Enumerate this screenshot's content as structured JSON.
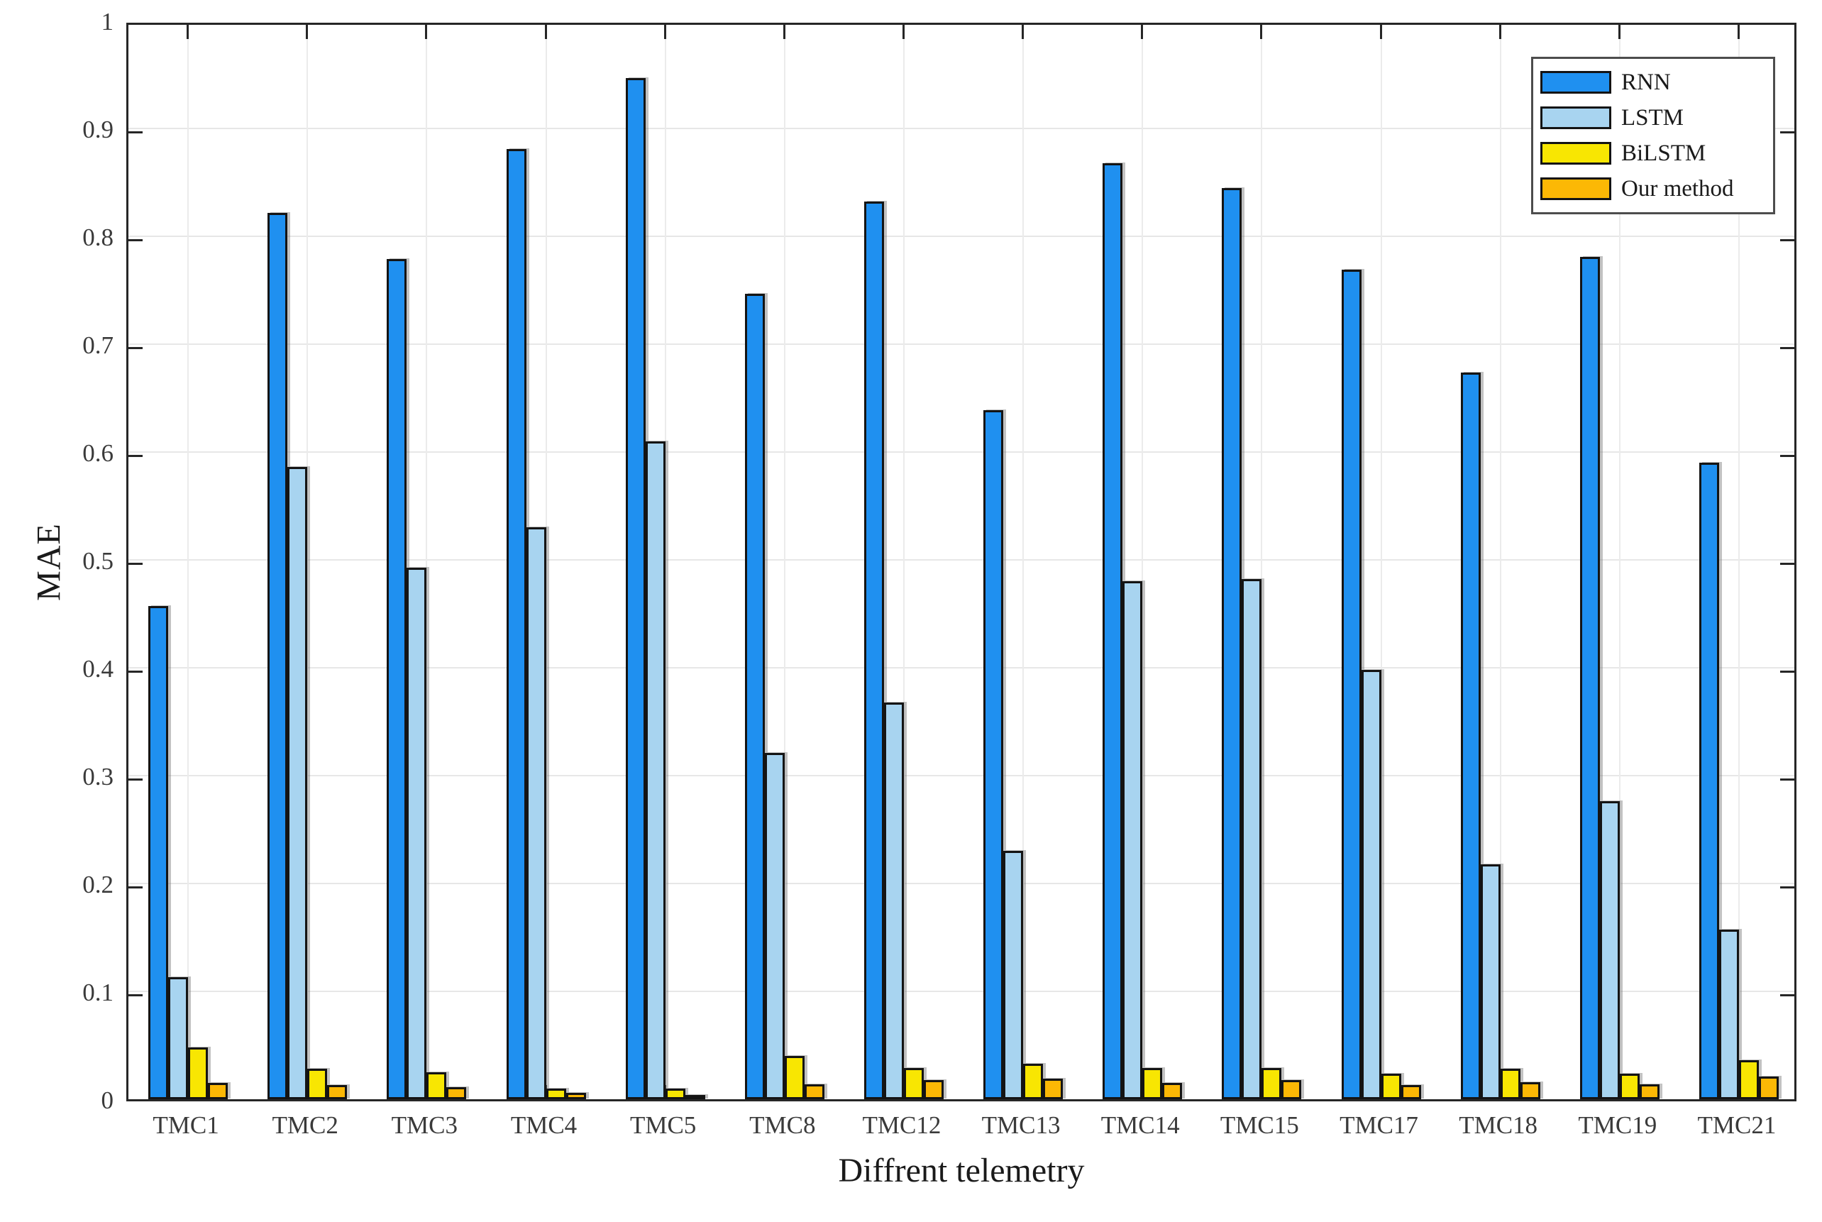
{
  "chart_data": {
    "type": "bar",
    "title": "",
    "xlabel": "Diffrent telemetry",
    "ylabel": "MAE",
    "ylim": [
      0,
      1
    ],
    "ytick_labels": [
      "0",
      "0.1",
      "0.2",
      "0.3",
      "0.4",
      "0.5",
      "0.6",
      "0.7",
      "0.8",
      "0.9",
      "1"
    ],
    "grid": true,
    "legend_position": "top-right",
    "categories": [
      "TMC1",
      "TMC2",
      "TMC3",
      "TMC4",
      "TMC5",
      "TMC8",
      "TMC12",
      "TMC13",
      "TMC14",
      "TMC15",
      "TMC17",
      "TMC18",
      "TMC19",
      "TMC21"
    ],
    "series": [
      {
        "name": "RNN",
        "color": "#1f90f0",
        "values": [
          0.457,
          0.822,
          0.779,
          0.881,
          0.947,
          0.747,
          0.832,
          0.639,
          0.868,
          0.845,
          0.769,
          0.674,
          0.781,
          0.59
        ]
      },
      {
        "name": "LSTM",
        "color": "#a8d4f0",
        "values": [
          0.113,
          0.586,
          0.493,
          0.53,
          0.61,
          0.321,
          0.368,
          0.23,
          0.48,
          0.482,
          0.398,
          0.218,
          0.276,
          0.157
        ]
      },
      {
        "name": "BiLSTM",
        "color": "#f8e602",
        "values": [
          0.048,
          0.028,
          0.025,
          0.01,
          0.01,
          0.04,
          0.029,
          0.033,
          0.029,
          0.029,
          0.024,
          0.028,
          0.024,
          0.036
        ]
      },
      {
        "name": "Our method",
        "color": "#fcb805",
        "values": [
          0.015,
          0.013,
          0.011,
          0.006,
          0.004,
          0.014,
          0.018,
          0.019,
          0.015,
          0.018,
          0.013,
          0.016,
          0.014,
          0.021
        ]
      }
    ],
    "colors": {
      "bar_edge": "#141414",
      "grid": "#e7e7e7",
      "axis": "#262626",
      "tick_text": "#3a3a3a",
      "label_text": "#1a1a1a",
      "legend_border": "#4d4d4d"
    }
  }
}
